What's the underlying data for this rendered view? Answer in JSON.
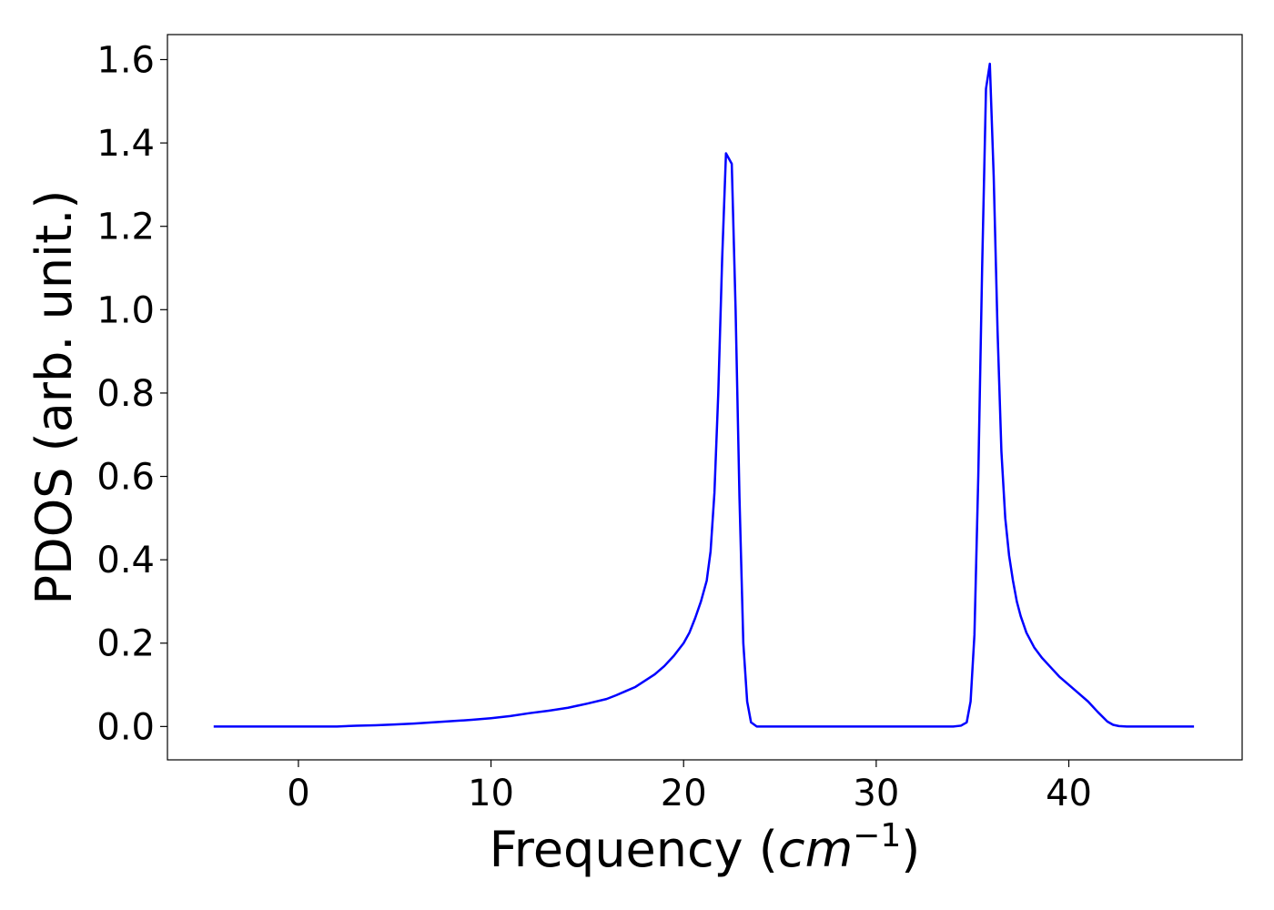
{
  "chart_data": {
    "type": "line",
    "title": "",
    "xlabel": "Frequency (",
    "xlabel_math": "cm",
    "xlabel_sup": "−1",
    "xlabel_end": ")",
    "ylabel": "PDOS (arb. unit.)",
    "xlim": [
      -6.8,
      49.0
    ],
    "ylim": [
      -0.08,
      1.66
    ],
    "xticks": [
      0,
      10,
      20,
      30,
      40
    ],
    "xtick_labels": [
      "0",
      "10",
      "20",
      "30",
      "40"
    ],
    "yticks": [
      0.0,
      0.2,
      0.4,
      0.6,
      0.8,
      1.0,
      1.2,
      1.4,
      1.6
    ],
    "ytick_labels": [
      "0.0",
      "0.2",
      "0.4",
      "0.6",
      "0.8",
      "1.0",
      "1.2",
      "1.4",
      "1.6"
    ],
    "grid": false,
    "series": [
      {
        "color": "#0000ff",
        "x": [
          -4.4,
          -2,
          0,
          1,
          2,
          3,
          4,
          5,
          6,
          7,
          8,
          9,
          10,
          11,
          12,
          13,
          14,
          15,
          16,
          16.5,
          17,
          17.5,
          18,
          18.5,
          19,
          19.5,
          20,
          20.3,
          20.6,
          20.9,
          21.2,
          21.4,
          21.6,
          21.8,
          22.0,
          22.2,
          22.5,
          22.7,
          22.9,
          23.1,
          23.3,
          23.5,
          23.8,
          24.5,
          26,
          28,
          30,
          32,
          33,
          34,
          34.4,
          34.7,
          34.9,
          35.1,
          35.3,
          35.5,
          35.7,
          35.9,
          36.1,
          36.3,
          36.5,
          36.7,
          36.9,
          37.1,
          37.3,
          37.5,
          37.8,
          38.2,
          38.6,
          39,
          39.5,
          40,
          40.5,
          41,
          41.5,
          42,
          42.3,
          42.6,
          43,
          43.5,
          44.5,
          46.5
        ],
        "y": [
          0.0,
          0.0,
          0.0,
          0.0,
          0.0,
          0.002,
          0.003,
          0.005,
          0.007,
          0.01,
          0.013,
          0.016,
          0.02,
          0.025,
          0.032,
          0.038,
          0.045,
          0.055,
          0.066,
          0.075,
          0.085,
          0.095,
          0.11,
          0.125,
          0.145,
          0.17,
          0.2,
          0.225,
          0.26,
          0.3,
          0.35,
          0.42,
          0.56,
          0.8,
          1.12,
          1.375,
          1.35,
          1.0,
          0.55,
          0.2,
          0.06,
          0.01,
          0.0,
          0.0,
          0.0,
          0.0,
          0.0,
          0.0,
          0.0,
          0.0,
          0.002,
          0.01,
          0.06,
          0.22,
          0.6,
          1.1,
          1.53,
          1.59,
          1.32,
          0.95,
          0.66,
          0.5,
          0.41,
          0.35,
          0.3,
          0.265,
          0.225,
          0.19,
          0.165,
          0.145,
          0.12,
          0.1,
          0.08,
          0.06,
          0.035,
          0.012,
          0.004,
          0.001,
          0.0,
          0.0,
          0.0,
          0.0
        ]
      }
    ]
  }
}
